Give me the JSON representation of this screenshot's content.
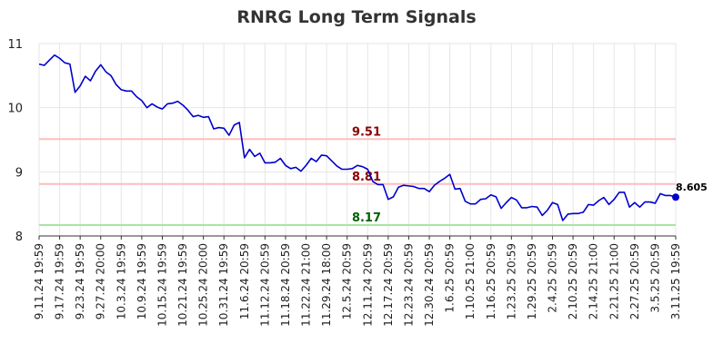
{
  "chart_data": {
    "type": "line",
    "title": "RNRG Long Term Signals",
    "xlabel": "",
    "ylabel": "",
    "ylim": [
      8,
      11
    ],
    "yticks": [
      8,
      9,
      10,
      11
    ],
    "grid": true,
    "x_tick_labels": [
      "9.11.24 19:59",
      "9.17.24 19:59",
      "9.23.24 19:59",
      "9.27.24 20:00",
      "10.3.24 19:59",
      "10.9.24 19:59",
      "10.15.24 19:59",
      "10.21.24 19:59",
      "10.25.24 20:00",
      "10.31.24 19:59",
      "11.6.24 20:59",
      "11.12.24 20:59",
      "11.18.24 20:59",
      "11.22.24 21:00",
      "11.29.24 18:00",
      "12.5.24 20:59",
      "12.11.24 20:59",
      "12.17.24 20:59",
      "12.23.24 20:59",
      "12.30.24 20:59",
      "1.6.25 20:59",
      "1.10.25 21:00",
      "1.16.25 20:59",
      "1.23.25 20:59",
      "1.29.25 20:59",
      "2.4.25 20:59",
      "2.10.25 20:59",
      "2.14.25 21:00",
      "2.21.25 21:00",
      "2.27.25 20:59",
      "3.5.25 20:59",
      "3.11.25 19:59"
    ],
    "reference_lines": [
      {
        "value": 9.51,
        "label": "9.51",
        "color": "#ffbdbd",
        "label_color": "#8b0000"
      },
      {
        "value": 8.81,
        "label": "8.81",
        "color": "#ffbdbd",
        "label_color": "#8b0000"
      },
      {
        "value": 8.17,
        "label": "8.17",
        "color": "#a6e6a0",
        "label_color": "#006400"
      }
    ],
    "series": [
      {
        "color": "#0000cc",
        "values": [
          10.68,
          10.66,
          10.74,
          10.82,
          10.77,
          10.7,
          10.68,
          10.24,
          10.34,
          10.49,
          10.42,
          10.57,
          10.67,
          10.56,
          10.5,
          10.36,
          10.28,
          10.26,
          10.26,
          10.17,
          10.11,
          10.0,
          10.06,
          10.01,
          9.98,
          10.06,
          10.07,
          10.1,
          10.04,
          9.96,
          9.86,
          9.88,
          9.85,
          9.86,
          9.67,
          9.69,
          9.68,
          9.57,
          9.73,
          9.77,
          9.22,
          9.35,
          9.24,
          9.29,
          9.14,
          9.14,
          9.15,
          9.21,
          9.1,
          9.05,
          9.07,
          9.01,
          9.1,
          9.21,
          9.16,
          9.26,
          9.25,
          9.17,
          9.09,
          9.04,
          9.04,
          9.05,
          9.1,
          9.08,
          9.04,
          8.85,
          8.8,
          8.8,
          8.57,
          8.61,
          8.76,
          8.79,
          8.78,
          8.77,
          8.74,
          8.74,
          8.69,
          8.79,
          8.85,
          8.9,
          8.96,
          8.73,
          8.74,
          8.54,
          8.5,
          8.5,
          8.57,
          8.58,
          8.64,
          8.61,
          8.43,
          8.52,
          8.6,
          8.56,
          8.44,
          8.44,
          8.46,
          8.45,
          8.32,
          8.4,
          8.52,
          8.49,
          8.24,
          8.34,
          8.35,
          8.35,
          8.37,
          8.49,
          8.48,
          8.55,
          8.6,
          8.49,
          8.57,
          8.68,
          8.68,
          8.45,
          8.52,
          8.45,
          8.53,
          8.53,
          8.51,
          8.66,
          8.63,
          8.63,
          8.605
        ]
      }
    ],
    "last_value": 8.605,
    "last_value_label": "8.605"
  }
}
